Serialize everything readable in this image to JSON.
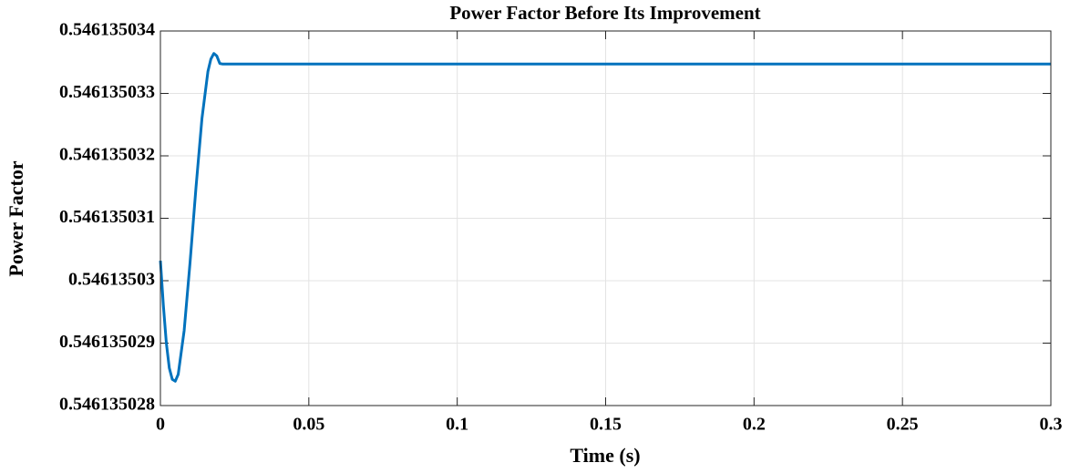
{
  "chart_data": {
    "type": "line",
    "title": "Power Factor Before Its Improvement",
    "x_label": "Time (s)",
    "y_label": "Power Factor",
    "x": [
      0,
      0.001,
      0.002,
      0.003,
      0.004,
      0.005,
      0.006,
      0.008,
      0.01,
      0.012,
      0.014,
      0.016,
      0.017,
      0.018,
      0.019,
      0.02,
      0.021,
      0.3
    ],
    "series": [
      {
        "color": "#0072BD",
        "values": [
          0.54613503032,
          0.5461350296,
          0.546135029,
          0.5461350286,
          0.54613502842,
          0.54613502839,
          0.5461350285,
          0.5461350292,
          0.5461350303,
          0.5461350315,
          0.5461350326,
          0.54613503335,
          0.54613503355,
          0.54613503364,
          0.5461350336,
          0.54613503348,
          0.54613503347,
          0.54613503347
        ]
      }
    ],
    "xlim": [
      0,
      0.3
    ],
    "xticks": [
      0,
      0.05,
      0.1,
      0.15,
      0.2,
      0.25,
      0.3
    ],
    "ylim": [
      0.546135028,
      0.546135034
    ],
    "yticks": [
      0.546135028,
      0.546135029,
      0.54613503,
      0.546135031,
      0.546135032,
      0.546135033,
      0.546135034
    ],
    "grid": true
  }
}
